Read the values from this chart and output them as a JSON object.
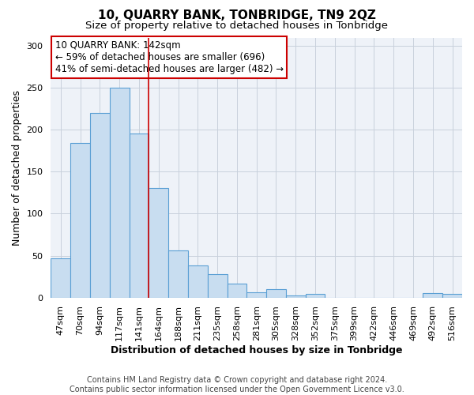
{
  "title1": "10, QUARRY BANK, TONBRIDGE, TN9 2QZ",
  "title2": "Size of property relative to detached houses in Tonbridge",
  "xlabel": "Distribution of detached houses by size in Tonbridge",
  "ylabel": "Number of detached properties",
  "categories": [
    "47sqm",
    "70sqm",
    "94sqm",
    "117sqm",
    "141sqm",
    "164sqm",
    "188sqm",
    "211sqm",
    "235sqm",
    "258sqm",
    "281sqm",
    "305sqm",
    "328sqm",
    "352sqm",
    "375sqm",
    "399sqm",
    "422sqm",
    "446sqm",
    "469sqm",
    "492sqm",
    "516sqm"
  ],
  "values": [
    47,
    184,
    220,
    250,
    196,
    131,
    56,
    38,
    28,
    17,
    6,
    10,
    2,
    4,
    0,
    0,
    0,
    0,
    0,
    5,
    4
  ],
  "bar_color": "#c8ddf0",
  "bar_edge_color": "#5a9fd4",
  "highlight_bar_index": 4,
  "highlight_line_color": "#cc0000",
  "annotation_text": "10 QUARRY BANK: 142sqm\n← 59% of detached houses are smaller (696)\n41% of semi-detached houses are larger (482) →",
  "annotation_box_color": "#ffffff",
  "annotation_box_edge_color": "#cc0000",
  "ylim": [
    0,
    310
  ],
  "yticks": [
    0,
    50,
    100,
    150,
    200,
    250,
    300
  ],
  "grid_color": "#c8d0dc",
  "background_color": "#eef2f8",
  "footer_text": "Contains HM Land Registry data © Crown copyright and database right 2024.\nContains public sector information licensed under the Open Government Licence v3.0.",
  "title1_fontsize": 11,
  "title2_fontsize": 9.5,
  "xlabel_fontsize": 9,
  "ylabel_fontsize": 9,
  "annotation_fontsize": 8.5,
  "footer_fontsize": 7
}
